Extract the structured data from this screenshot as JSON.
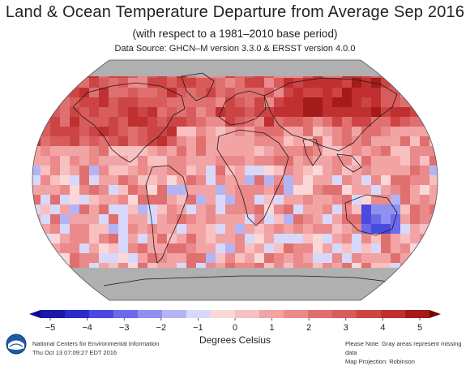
{
  "header": {
    "title": "Land & Ocean Temperature Departure from Average Sep 2016",
    "subtitle": "(with respect to a 1981–2010 base period)",
    "source": "Data Source: GHCN–M version 3.3.0 & ERSST version 4.0.0"
  },
  "legend": {
    "label": "Degrees Celsius",
    "ticks": [
      "−5",
      "−4",
      "−3",
      "−2",
      "−1",
      "0",
      "1",
      "2",
      "3",
      "4",
      "5"
    ],
    "colors": [
      "#1a1aa8",
      "#2c2ccc",
      "#4a4ae0",
      "#6b6bea",
      "#9090f0",
      "#b4b4f5",
      "#d8d8fa",
      "#fad8d8",
      "#f8c0c0",
      "#f2a4a4",
      "#ea8a8a",
      "#e07070",
      "#d85c5c",
      "#cc4444",
      "#c03030",
      "#a51a1a"
    ],
    "range": [
      -5,
      5
    ]
  },
  "map": {
    "projection": "Robinson",
    "missing_color": "#b0b0b0",
    "ocean_base_color": "#f6c8c8",
    "land_base_color": "#f3b6b6"
  },
  "footer": {
    "org": "National Centers for Environmental Information",
    "timestamp": "Thu Oct 13 07:09:27 EDT 2016",
    "note": "Please Note: Gray areas represent missing data",
    "projection": "Map Projection: Robinson"
  }
}
